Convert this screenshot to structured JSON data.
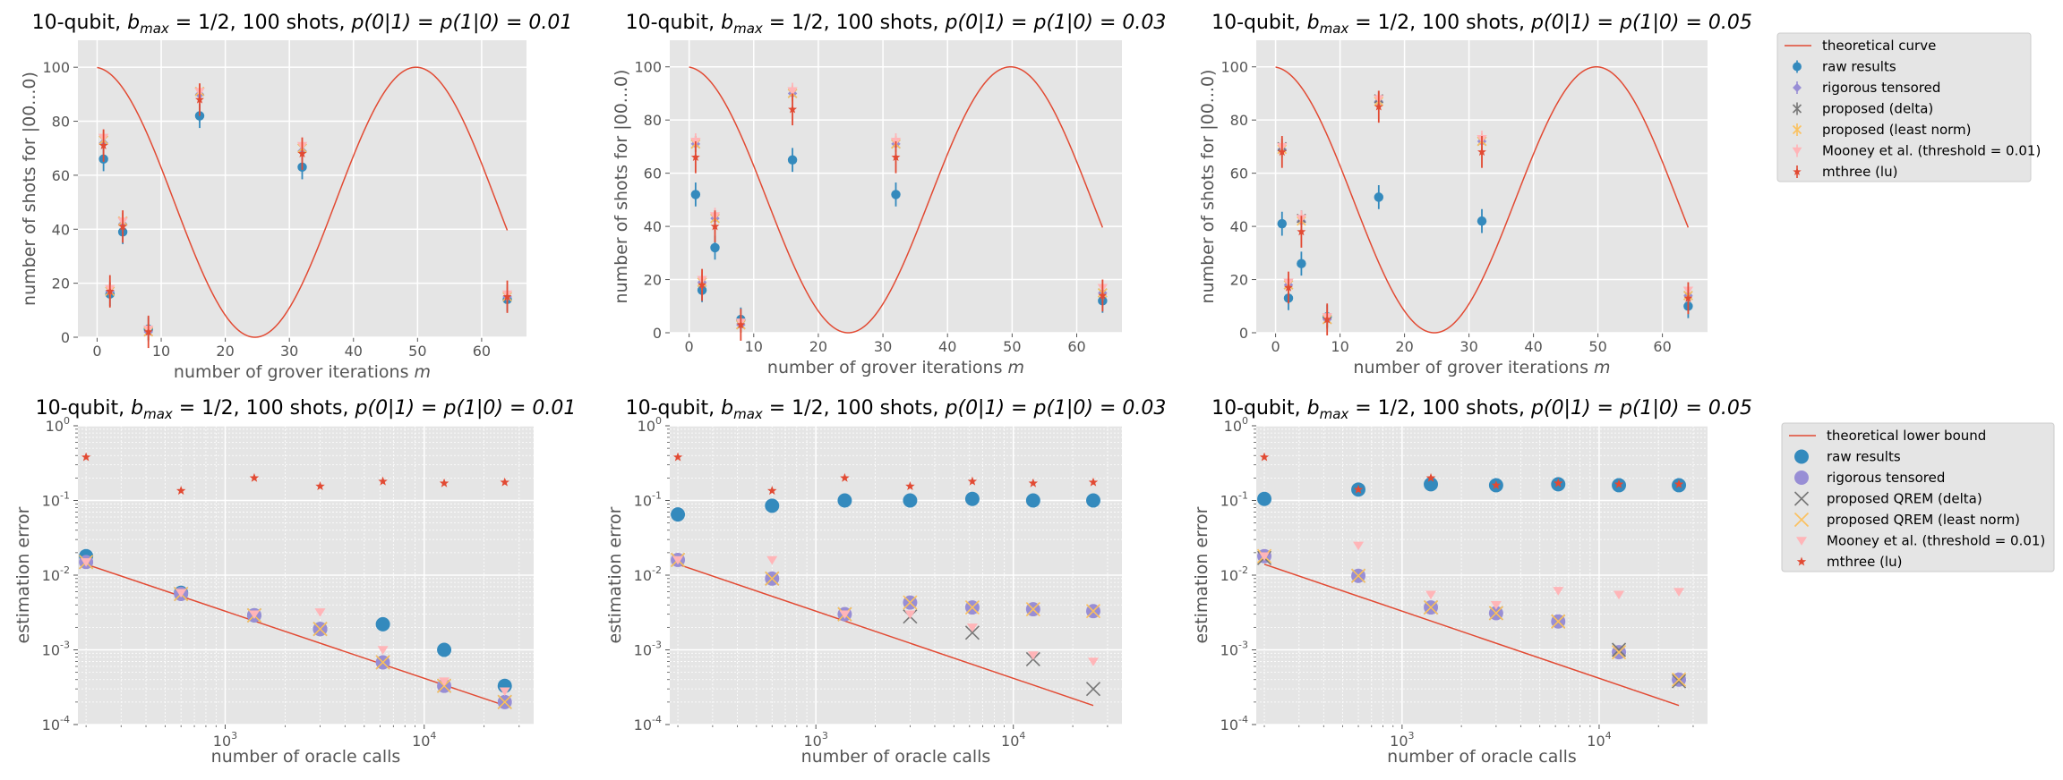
{
  "figure": {
    "legend_top": {
      "entries": [
        {
          "label": "theoretical curve",
          "marker": "line",
          "color": "#E24A33"
        },
        {
          "label": "raw results",
          "marker": "circle-err",
          "color": "#348ABD"
        },
        {
          "label": "rigorous tensored",
          "marker": "diamond-err",
          "color": "#988ED5"
        },
        {
          "label": "proposed (delta)",
          "marker": "x-err",
          "color": "#777777"
        },
        {
          "label": "proposed (least norm)",
          "marker": "x-err",
          "color": "#FBC15E"
        },
        {
          "label": "Mooney et al. (threshold = 0.01)",
          "marker": "tri-err",
          "color": "#FFB5B8"
        },
        {
          "label": "mthree (lu)",
          "marker": "star-err",
          "color": "#E24A33"
        }
      ]
    },
    "legend_bottom": {
      "entries": [
        {
          "label": "theoretical lower bound",
          "marker": "line",
          "color": "#E24A33"
        },
        {
          "label": "raw results",
          "marker": "circle",
          "color": "#348ABD"
        },
        {
          "label": "rigorous tensored",
          "marker": "circle",
          "color": "#988ED5"
        },
        {
          "label": "proposed QREM (delta)",
          "marker": "x",
          "color": "#777777"
        },
        {
          "label": "proposed QREM (least norm)",
          "marker": "x",
          "color": "#FBC15E"
        },
        {
          "label": "Mooney et al. (threshold = 0.01)",
          "marker": "tri",
          "color": "#FFB5B8"
        },
        {
          "label": "mthree (lu)",
          "marker": "star",
          "color": "#E24A33"
        }
      ]
    }
  },
  "chart_data": [
    {
      "type": "line+errorbar",
      "title_prefix": "10-qubit, ",
      "title_b": "b",
      "title_sub": "max",
      "title_mid": " = 1/2, 100 shots, ",
      "title_p": "p(0|1) = p(1|0) = 0.01",
      "xlabel": "number of grover iterations m",
      "xlabel_text": "number of grover iterations ",
      "xlabel_m": "m",
      "ylabel": "number of shots for |00...0)",
      "xlim": [
        -3,
        67
      ],
      "ylim": [
        0,
        110
      ],
      "xticks": [
        0,
        10,
        20,
        30,
        40,
        50,
        60
      ],
      "xticklabels": [
        "0",
        "10",
        "20",
        "30",
        "40",
        "50",
        "60"
      ],
      "yticks": [
        0,
        20,
        40,
        60,
        80,
        100
      ],
      "yticklabels": [
        "0",
        "20",
        "40",
        "60",
        "80",
        "100"
      ],
      "x": [
        1,
        2,
        4,
        8,
        16,
        32,
        64
      ],
      "series": [
        {
          "name": "raw results",
          "values": [
            66,
            16,
            39,
            3,
            82,
            63,
            14
          ]
        },
        {
          "name": "rigorous tensored",
          "values": [
            72,
            17,
            42,
            2,
            90,
            69,
            15
          ]
        },
        {
          "name": "proposed (delta)",
          "values": [
            73,
            17,
            43,
            2,
            91,
            70,
            15
          ]
        },
        {
          "name": "proposed (least norm)",
          "values": [
            73,
            17,
            43,
            2,
            91,
            70,
            15
          ]
        },
        {
          "name": "Mooney et al. (threshold = 0.01)",
          "values": [
            74,
            18,
            43,
            3,
            91,
            71,
            16
          ]
        },
        {
          "name": "mthree (lu)",
          "values": [
            71,
            17,
            41,
            2,
            88,
            68,
            15
          ]
        }
      ]
    },
    {
      "type": "line+errorbar",
      "title_prefix": "10-qubit, ",
      "title_b": "b",
      "title_sub": "max",
      "title_mid": " = 1/2, 100 shots, ",
      "title_p": "p(0|1) = p(1|0) = 0.03",
      "xlabel": "number of grover iterations m",
      "xlabel_text": "number of grover iterations ",
      "xlabel_m": "m",
      "ylabel": "number of shots for |00...0)",
      "xlim": [
        -3,
        67
      ],
      "ylim": [
        0,
        110
      ],
      "xticks": [
        0,
        10,
        20,
        30,
        40,
        50,
        60
      ],
      "xticklabels": [
        "0",
        "10",
        "20",
        "30",
        "40",
        "50",
        "60"
      ],
      "yticks": [
        0,
        20,
        40,
        60,
        80,
        100
      ],
      "yticklabels": [
        "0",
        "20",
        "40",
        "60",
        "80",
        "100"
      ],
      "x": [
        1,
        2,
        4,
        8,
        16,
        32,
        64
      ],
      "series": [
        {
          "name": "raw results",
          "values": [
            52,
            16,
            32,
            5,
            65,
            52,
            12
          ]
        },
        {
          "name": "rigorous tensored",
          "values": [
            71,
            19,
            43,
            3,
            90,
            71,
            15
          ]
        },
        {
          "name": "proposed (delta)",
          "values": [
            71,
            19,
            43,
            3,
            90,
            71,
            15
          ]
        },
        {
          "name": "proposed (least norm)",
          "values": [
            71,
            19,
            43,
            3,
            90,
            71,
            15
          ]
        },
        {
          "name": "Mooney et al. (threshold = 0.01)",
          "values": [
            72,
            20,
            44,
            4,
            91,
            72,
            17
          ]
        },
        {
          "name": "mthree (lu)",
          "values": [
            66,
            18,
            40,
            3,
            84,
            66,
            14
          ]
        }
      ]
    },
    {
      "type": "line+errorbar",
      "title_prefix": "10-qubit, ",
      "title_b": "b",
      "title_sub": "max",
      "title_mid": " = 1/2, 100 shots, ",
      "title_p": "p(0|1) = p(1|0) = 0.05",
      "xlabel": "number of grover iterations m",
      "xlabel_text": "number of grover iterations ",
      "xlabel_m": "m",
      "ylabel": "number of shots for |00...0)",
      "xlim": [
        -3,
        67
      ],
      "ylim": [
        0,
        110
      ],
      "xticks": [
        0,
        10,
        20,
        30,
        40,
        50,
        60
      ],
      "xticklabels": [
        "0",
        "10",
        "20",
        "30",
        "40",
        "50",
        "60"
      ],
      "yticks": [
        0,
        20,
        40,
        60,
        80,
        100
      ],
      "yticklabels": [
        "0",
        "20",
        "40",
        "60",
        "80",
        "100"
      ],
      "x": [
        1,
        2,
        4,
        8,
        16,
        32,
        64
      ],
      "series": [
        {
          "name": "raw results",
          "values": [
            41,
            13,
            26,
            6,
            51,
            42,
            10
          ]
        },
        {
          "name": "rigorous tensored",
          "values": [
            69,
            18,
            42,
            5,
            87,
            72,
            14
          ]
        },
        {
          "name": "proposed (delta)",
          "values": [
            70,
            18,
            43,
            5,
            88,
            72,
            14
          ]
        },
        {
          "name": "proposed (least norm)",
          "values": [
            69,
            18,
            42,
            5,
            87,
            72,
            14
          ]
        },
        {
          "name": "Mooney et al. (threshold = 0.01)",
          "values": [
            70,
            19,
            43,
            6,
            88,
            73,
            16
          ]
        },
        {
          "name": "mthree (lu)",
          "values": [
            68,
            17,
            38,
            5,
            85,
            68,
            13
          ]
        }
      ]
    },
    {
      "type": "scatter-loglog",
      "title_prefix": "10-qubit, ",
      "title_b": "b",
      "title_sub": "max",
      "title_mid": " = 1/2, 100 shots, ",
      "title_p": "p(0|1) = p(1|0) = 0.01",
      "xlabel": "number of oracle calls",
      "ylabel": "estimation error",
      "xlim_log10": [
        2.26,
        4.55
      ],
      "ylim_log10": [
        -4,
        0
      ],
      "xticks_log10": [
        3,
        4
      ],
      "xticklabels": [
        "10",
        "10"
      ],
      "xtick_exp": [
        "3",
        "4"
      ],
      "yticks_log10": [
        -4,
        -3,
        -2,
        -1,
        0
      ],
      "yticklabels": [
        "10",
        "10",
        "10",
        "10",
        "10"
      ],
      "ytick_exp": [
        "-4",
        "-3",
        "-2",
        "-1",
        "0"
      ],
      "x": [
        200,
        600,
        1400,
        3000,
        6200,
        12600,
        25400
      ],
      "bound": {
        "x": [
          200,
          25400
        ],
        "y": [
          0.014,
          0.00018
        ]
      },
      "series": [
        {
          "name": "raw results",
          "values": [
            0.018,
            0.0058,
            0.0029,
            0.0019,
            0.0022,
            0.001,
            0.00033
          ]
        },
        {
          "name": "rigorous tensored",
          "values": [
            0.015,
            0.0056,
            0.0029,
            0.0019,
            0.00068,
            0.00033,
            0.0002
          ]
        },
        {
          "name": "proposed QREM (delta)",
          "values": [
            0.015,
            0.0056,
            0.0029,
            0.0019,
            0.00068,
            0.00033,
            0.0002
          ]
        },
        {
          "name": "proposed QREM (least norm)",
          "values": [
            0.015,
            0.0056,
            0.0029,
            0.0019,
            0.00068,
            0.00033,
            0.0002
          ]
        },
        {
          "name": "Mooney et al. (threshold = 0.01)",
          "values": [
            0.015,
            0.0058,
            0.003,
            0.0032,
            0.001,
            0.00038,
            0.00028
          ]
        },
        {
          "name": "mthree (lu)",
          "values": [
            0.38,
            0.135,
            0.2,
            0.155,
            0.18,
            0.17,
            0.175
          ]
        }
      ]
    },
    {
      "type": "scatter-loglog",
      "title_prefix": "10-qubit, ",
      "title_b": "b",
      "title_sub": "max",
      "title_mid": " = 1/2, 100 shots, ",
      "title_p": "p(0|1) = p(1|0) = 0.03",
      "xlabel": "number of oracle calls",
      "ylabel": "estimation error",
      "xlim_log10": [
        2.26,
        4.55
      ],
      "ylim_log10": [
        -4,
        0
      ],
      "xticks_log10": [
        3,
        4
      ],
      "xticklabels": [
        "10",
        "10"
      ],
      "xtick_exp": [
        "3",
        "4"
      ],
      "yticks_log10": [
        -4,
        -3,
        -2,
        -1,
        0
      ],
      "yticklabels": [
        "10",
        "10",
        "10",
        "10",
        "10"
      ],
      "ytick_exp": [
        "-4",
        "-3",
        "-2",
        "-1",
        "0"
      ],
      "x": [
        200,
        600,
        1400,
        3000,
        6200,
        12600,
        25400
      ],
      "bound": {
        "x": [
          200,
          25400
        ],
        "y": [
          0.014,
          0.00018
        ]
      },
      "series": [
        {
          "name": "raw results",
          "values": [
            0.065,
            0.085,
            0.1,
            0.1,
            0.105,
            0.1,
            0.1
          ]
        },
        {
          "name": "rigorous tensored",
          "values": [
            0.016,
            0.009,
            0.003,
            0.0043,
            0.0037,
            0.0035,
            0.0033
          ]
        },
        {
          "name": "proposed QREM (delta)",
          "values": [
            0.016,
            0.009,
            0.003,
            0.0028,
            0.0017,
            0.00075,
            0.0003
          ]
        },
        {
          "name": "proposed QREM (least norm)",
          "values": [
            0.016,
            0.009,
            0.003,
            0.0043,
            0.0037,
            0.0035,
            0.0033
          ]
        },
        {
          "name": "Mooney et al. (threshold = 0.01)",
          "values": [
            0.016,
            0.016,
            0.003,
            0.003,
            0.002,
            0.00085,
            0.0007
          ]
        },
        {
          "name": "mthree (lu)",
          "values": [
            0.38,
            0.135,
            0.2,
            0.155,
            0.18,
            0.17,
            0.175
          ]
        }
      ]
    },
    {
      "type": "scatter-loglog",
      "title_prefix": "10-qubit, ",
      "title_b": "b",
      "title_sub": "max",
      "title_mid": " = 1/2, 100 shots, ",
      "title_p": "p(0|1) = p(1|0) = 0.05",
      "xlabel": "number of oracle calls",
      "ylabel": "estimation error",
      "xlim_log10": [
        2.26,
        4.55
      ],
      "ylim_log10": [
        -4,
        0
      ],
      "xticks_log10": [
        3,
        4
      ],
      "xticklabels": [
        "10",
        "10"
      ],
      "xtick_exp": [
        "3",
        "4"
      ],
      "yticks_log10": [
        -4,
        -3,
        -2,
        -1,
        0
      ],
      "yticklabels": [
        "10",
        "10",
        "10",
        "10",
        "10"
      ],
      "ytick_exp": [
        "-4",
        "-3",
        "-2",
        "-1",
        "0"
      ],
      "x": [
        200,
        600,
        1400,
        3000,
        6200,
        12600,
        25400
      ],
      "bound": {
        "x": [
          200,
          25400
        ],
        "y": [
          0.014,
          0.00018
        ]
      },
      "series": [
        {
          "name": "raw results",
          "values": [
            0.105,
            0.14,
            0.165,
            0.16,
            0.165,
            0.16,
            0.16
          ]
        },
        {
          "name": "rigorous tensored",
          "values": [
            0.018,
            0.0098,
            0.0037,
            0.0031,
            0.0024,
            0.00093,
            0.0004
          ]
        },
        {
          "name": "proposed QREM (delta)",
          "values": [
            0.017,
            0.0098,
            0.0037,
            0.0031,
            0.0024,
            0.001,
            0.00038
          ]
        },
        {
          "name": "proposed QREM (least norm)",
          "values": [
            0.018,
            0.0098,
            0.0037,
            0.0031,
            0.0024,
            0.00093,
            0.0004
          ]
        },
        {
          "name": "Mooney et al. (threshold = 0.01)",
          "values": [
            0.018,
            0.025,
            0.0055,
            0.004,
            0.0062,
            0.0055,
            0.006
          ]
        },
        {
          "name": "mthree (lu)",
          "values": [
            0.38,
            0.14,
            0.2,
            0.16,
            0.17,
            0.165,
            0.165
          ]
        }
      ]
    }
  ]
}
